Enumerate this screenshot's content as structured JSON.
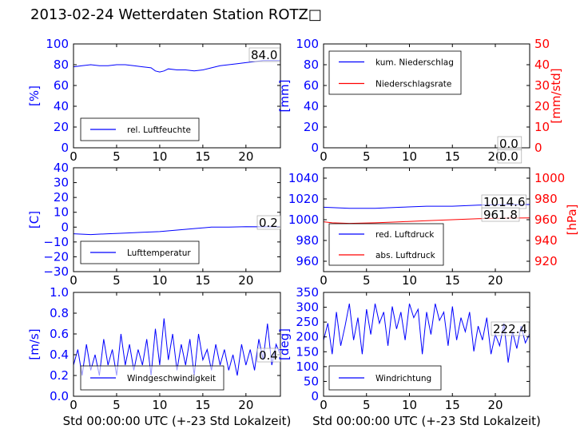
{
  "title": "2013-02-24 Wetterdaten Station ROTZ□",
  "colors": {
    "left_axis": "#0000ff",
    "right_axis": "#ff0000",
    "axes": "#000000"
  },
  "chart_data": [
    {
      "id": "humidity",
      "type": "line",
      "x_range": [
        0,
        24
      ],
      "xticks": [
        "0",
        "5",
        "10",
        "15",
        "20"
      ],
      "ylim": [
        0,
        100
      ],
      "yticks": [
        "0",
        "20",
        "40",
        "60",
        "80",
        "100"
      ],
      "ylabel": "[%]",
      "xlabel": "",
      "grid": false,
      "legend_position": "lower-left",
      "last_value_label": "84.0",
      "series": [
        {
          "name": "rel. Luftfeuchte",
          "color": "#0000ff",
          "x": [
            0,
            1,
            2,
            3,
            4,
            5,
            6,
            7,
            8,
            9,
            9.5,
            10,
            10.5,
            11,
            12,
            13,
            14,
            15,
            16,
            17,
            18,
            19,
            20,
            21,
            22,
            23,
            24
          ],
          "y": [
            78,
            79,
            80,
            79,
            79,
            80,
            80,
            79,
            78,
            77,
            74,
            73,
            74,
            76,
            75,
            75,
            74,
            75,
            77,
            79,
            80,
            81,
            82,
            83,
            84,
            84,
            84
          ]
        }
      ]
    },
    {
      "id": "precipitation",
      "type": "line",
      "x_range": [
        0,
        24
      ],
      "xticks": [
        "0",
        "5",
        "10",
        "15",
        "20"
      ],
      "ylim": [
        0,
        100
      ],
      "yticks": [
        "0",
        "20",
        "40",
        "60",
        "80",
        "100"
      ],
      "ylabel": "[mm]",
      "y2lim": [
        0,
        50
      ],
      "y2ticks": [
        "0",
        "10",
        "20",
        "30",
        "40",
        "50"
      ],
      "y2label": "[mm/std]",
      "grid": false,
      "legend_position": "upper-left",
      "last_value_labels": [
        "0.0",
        "0.0"
      ],
      "series": [
        {
          "name": "kum. Niederschlag",
          "color": "#0000ff",
          "axis": "left",
          "x": [
            0,
            24
          ],
          "y": [
            0,
            0
          ]
        },
        {
          "name": "Niederschlagsrate",
          "color": "#ff0000",
          "axis": "right",
          "x": [
            0,
            24
          ],
          "y": [
            0,
            0
          ]
        }
      ]
    },
    {
      "id": "temperature",
      "type": "line",
      "x_range": [
        0,
        24
      ],
      "xticks": [
        "0",
        "5",
        "10",
        "15",
        "20"
      ],
      "ylim": [
        -30,
        40
      ],
      "yticks": [
        "−30",
        "−20",
        "−10",
        "0",
        "10",
        "20",
        "30",
        "40"
      ],
      "ylabel": "[C]",
      "grid": false,
      "legend_position": "lower-left",
      "last_value_label": "0.2",
      "series": [
        {
          "name": "Lufttemperatur",
          "color": "#0000ff",
          "x": [
            0,
            2,
            4,
            6,
            8,
            10,
            12,
            14,
            16,
            18,
            20,
            22,
            24
          ],
          "y": [
            -4.5,
            -5,
            -4.5,
            -4,
            -3.5,
            -3,
            -2,
            -1,
            0,
            0,
            0.3,
            0.2,
            0.2
          ]
        }
      ]
    },
    {
      "id": "pressure",
      "type": "line",
      "x_range": [
        0,
        24
      ],
      "xticks": [
        "0",
        "5",
        "10",
        "15",
        "20"
      ],
      "ylim": [
        950,
        1050
      ],
      "yticks": [
        "960",
        "980",
        "1000",
        "1020",
        "1040"
      ],
      "ylabel": "",
      "y2lim": [
        910,
        1010
      ],
      "y2ticks": [
        "920",
        "940",
        "960",
        "980",
        "1000"
      ],
      "y2label": "[hPa]",
      "grid": false,
      "legend_position": "lower-left",
      "last_value_labels": [
        "1014.6",
        "961.8"
      ],
      "series": [
        {
          "name": "red. Luftdruck",
          "color": "#0000ff",
          "axis": "left",
          "x": [
            0,
            3,
            6,
            9,
            12,
            15,
            18,
            21,
            24
          ],
          "y": [
            1012,
            1011,
            1011,
            1012,
            1013,
            1013,
            1014,
            1014.5,
            1014.6
          ]
        },
        {
          "name": "abs. Luftdruck",
          "color": "#ff0000",
          "axis": "right",
          "x": [
            0,
            1,
            3,
            6,
            9,
            12,
            15,
            18,
            21,
            24
          ],
          "y": [
            958,
            957,
            956.5,
            957,
            958,
            959,
            960,
            961,
            961.5,
            961.8
          ]
        }
      ]
    },
    {
      "id": "wind_speed",
      "type": "line",
      "x_range": [
        0,
        24
      ],
      "xticks": [
        "0",
        "5",
        "10",
        "15",
        "20"
      ],
      "ylim": [
        0,
        1
      ],
      "yticks": [
        "0.0",
        "0.2",
        "0.4",
        "0.6",
        "0.8",
        "1.0"
      ],
      "ylabel": "[m/s]",
      "xlabel": "Std 00:00:00 UTC (+-23 Std Lokalzeit)",
      "grid": false,
      "legend_position": "lower-center",
      "last_value_label": "0.4",
      "series": [
        {
          "name": "Windgeschwindigkeit",
          "color": "#0000ff",
          "x": [
            0,
            0.5,
            1,
            1.5,
            2,
            2.5,
            3,
            3.5,
            4,
            4.5,
            5,
            5.5,
            6,
            6.5,
            7,
            7.5,
            8,
            8.5,
            9,
            9.5,
            10,
            10.5,
            11,
            11.5,
            12,
            12.5,
            13,
            13.5,
            14,
            14.5,
            15,
            15.5,
            16,
            16.5,
            17,
            17.5,
            18,
            18.5,
            19,
            19.5,
            20,
            20.5,
            21,
            21.5,
            22,
            22.5,
            23,
            23.5,
            24
          ],
          "y": [
            0.3,
            0.45,
            0.2,
            0.5,
            0.25,
            0.4,
            0.2,
            0.55,
            0.3,
            0.45,
            0.2,
            0.6,
            0.3,
            0.5,
            0.25,
            0.45,
            0.3,
            0.55,
            0.2,
            0.65,
            0.3,
            0.75,
            0.35,
            0.6,
            0.25,
            0.5,
            0.3,
            0.55,
            0.2,
            0.6,
            0.35,
            0.45,
            0.25,
            0.5,
            0.3,
            0.45,
            0.25,
            0.4,
            0.2,
            0.5,
            0.3,
            0.45,
            0.25,
            0.55,
            0.35,
            0.7,
            0.3,
            0.5,
            0.4
          ]
        }
      ]
    },
    {
      "id": "wind_direction",
      "type": "line",
      "x_range": [
        0,
        24
      ],
      "xticks": [
        "0",
        "5",
        "10",
        "15",
        "20"
      ],
      "ylim": [
        0,
        370
      ],
      "yticks": [
        "0",
        "50",
        "100",
        "150",
        "200",
        "250",
        "300",
        "350"
      ],
      "ylabel": "[deg]",
      "xlabel": "Std 00:00:00 UTC (+-23 Std Lokalzeit)",
      "grid": false,
      "legend_position": "lower-left",
      "last_value_label": "222.4",
      "series": [
        {
          "name": "Windrichtung",
          "color": "#0000ff",
          "x": [
            0,
            0.5,
            1,
            1.5,
            2,
            2.5,
            3,
            3.5,
            4,
            4.5,
            5,
            5.5,
            6,
            6.5,
            7,
            7.5,
            8,
            8.5,
            9,
            9.5,
            10,
            10.5,
            11,
            11.5,
            12,
            12.5,
            13,
            13.5,
            14,
            14.5,
            15,
            15.5,
            16,
            16.5,
            17,
            17.5,
            18,
            18.5,
            19,
            19.5,
            20,
            20.5,
            21,
            21.5,
            22,
            22.5,
            23,
            23.5,
            24
          ],
          "y": [
            200,
            260,
            150,
            300,
            180,
            250,
            330,
            200,
            280,
            150,
            310,
            220,
            330,
            260,
            300,
            180,
            320,
            240,
            300,
            200,
            330,
            280,
            310,
            150,
            300,
            220,
            330,
            270,
            300,
            180,
            320,
            200,
            280,
            230,
            300,
            160,
            250,
            200,
            280,
            150,
            220,
            180,
            260,
            120,
            230,
            170,
            250,
            190,
            222
          ]
        }
      ]
    }
  ]
}
